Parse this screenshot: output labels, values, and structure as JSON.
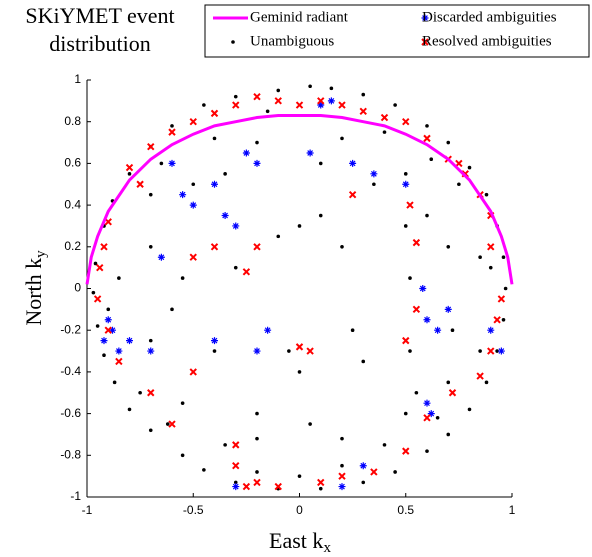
{
  "chart_data": {
    "type": "scatter",
    "title": [
      "SKiYMET event",
      "distribution"
    ],
    "xlabel": {
      "main": "East k",
      "sub": "x"
    },
    "ylabel": {
      "main": "North k",
      "sub": "y"
    },
    "xlim": [
      -1,
      1
    ],
    "ylim": [
      -1,
      1
    ],
    "xticks": [
      -1,
      -0.5,
      0,
      0.5,
      1
    ],
    "yticks": [
      -1,
      -0.8,
      -0.6,
      -0.4,
      -0.2,
      0,
      0.2,
      0.4,
      0.6,
      0.8,
      1
    ],
    "legend": "top-right",
    "series": [
      {
        "name": "Geminid radiant",
        "color": "#ff00ff",
        "marker": "line",
        "x": [
          -1,
          -0.98,
          -0.95,
          -0.9,
          -0.8,
          -0.7,
          -0.6,
          -0.5,
          -0.4,
          -0.3,
          -0.2,
          -0.1,
          0,
          0.1,
          0.2,
          0.3,
          0.4,
          0.5,
          0.6,
          0.7,
          0.8,
          0.9,
          0.95,
          0.98,
          1
        ],
        "values": [
          0.02,
          0.15,
          0.25,
          0.37,
          0.52,
          0.62,
          0.69,
          0.74,
          0.78,
          0.8,
          0.82,
          0.83,
          0.83,
          0.83,
          0.82,
          0.8,
          0.78,
          0.74,
          0.69,
          0.62,
          0.52,
          0.37,
          0.25,
          0.15,
          0.02
        ]
      },
      {
        "name": "Unambiguous",
        "color": "#000000",
        "marker": "dot",
        "x": [
          0.05,
          0.15,
          -0.1,
          0.3,
          -0.3,
          0.45,
          -0.45,
          0.6,
          -0.6,
          0.7,
          -0.7,
          0.8,
          -0.8,
          0.88,
          -0.88,
          0.93,
          -0.92,
          0.96,
          -0.96,
          0.97,
          -0.97,
          0.96,
          -0.95,
          0.93,
          -0.92,
          0.88,
          -0.87,
          0.8,
          -0.8,
          0.7,
          -0.7,
          0.6,
          -0.55,
          0.45,
          -0.45,
          0.3,
          -0.3,
          0.1,
          -0.1,
          0,
          0.5,
          -0.5,
          0.55,
          -0.55,
          0.7,
          -0.7,
          0.72,
          -0.7,
          0.2,
          -0.2,
          0.2,
          -0.2,
          0.52,
          0.52,
          0.5,
          0.5,
          0,
          0.1,
          -0.1,
          0.2,
          -0.3,
          0,
          -0.05,
          -0.4,
          0.3,
          -0.2,
          0.05,
          0.35,
          -0.35,
          0.1,
          -0.6,
          0.6,
          -0.55,
          0.25,
          -0.7,
          0.7,
          0.85,
          -0.85,
          0.85,
          -0.85,
          0.4,
          -0.4,
          0.4,
          -0.35,
          0.75,
          -0.75,
          0.1,
          -0.15,
          0.2,
          -0.2,
          0.9,
          -0.9,
          0.62,
          -0.65,
          0.65,
          -0.62
        ],
        "values": [
          0.97,
          0.96,
          0.95,
          0.93,
          0.92,
          0.88,
          0.88,
          0.78,
          0.78,
          0.7,
          0.68,
          0.58,
          0.55,
          0.45,
          0.42,
          0.3,
          0.3,
          0.15,
          0.12,
          0,
          -0.02,
          -0.15,
          -0.18,
          -0.3,
          -0.32,
          -0.45,
          -0.45,
          -0.58,
          -0.58,
          -0.7,
          -0.68,
          -0.78,
          -0.8,
          -0.88,
          -0.87,
          -0.93,
          -0.93,
          -0.96,
          -0.96,
          -0.9,
          0.55,
          0.5,
          -0.5,
          -0.55,
          0.2,
          0.2,
          -0.2,
          -0.25,
          0.72,
          0.7,
          -0.72,
          -0.72,
          0.05,
          -0.3,
          0.3,
          -0.6,
          0.3,
          0.35,
          0.25,
          0.2,
          0.1,
          -0.4,
          -0.3,
          -0.3,
          -0.35,
          -0.6,
          -0.65,
          0.5,
          0.55,
          0.6,
          -0.1,
          0.35,
          0.05,
          -0.2,
          0.45,
          -0.45,
          0.15,
          0.05,
          -0.3,
          -0.3,
          0.75,
          0.72,
          -0.75,
          -0.75,
          0.5,
          -0.5,
          0.88,
          0.85,
          -0.85,
          -0.88,
          0.1,
          -0.1,
          0.62,
          0.6,
          -0.62,
          -0.65
        ]
      },
      {
        "name": "Discarded ambiguities",
        "color": "#0000ff",
        "marker": "asterisk",
        "x": [
          -0.9,
          -0.92,
          -0.88,
          -0.85,
          -0.5,
          -0.55,
          -0.4,
          -0.2,
          -0.25,
          0.05,
          0.25,
          0.1,
          0.15,
          -0.6,
          -0.35,
          -0.3,
          0.7,
          0.65,
          0.6,
          0.58,
          0.9,
          0.95,
          0.6,
          0.62,
          -0.7,
          -0.8,
          -0.2,
          -0.15,
          -0.4,
          0.3,
          0.2,
          -0.65,
          -0.3,
          0.5,
          0.35
        ],
        "values": [
          -0.15,
          -0.25,
          -0.2,
          -0.3,
          0.4,
          0.45,
          0.5,
          0.6,
          0.65,
          0.65,
          0.6,
          0.88,
          0.9,
          0.6,
          0.35,
          0.3,
          -0.1,
          -0.2,
          -0.15,
          0,
          -0.2,
          -0.3,
          -0.55,
          -0.6,
          -0.3,
          -0.25,
          -0.3,
          -0.2,
          -0.25,
          -0.85,
          -0.95,
          0.15,
          -0.95,
          0.5,
          0.55
        ]
      },
      {
        "name": "Resolved ambiguities",
        "color": "#ff0000",
        "marker": "x",
        "x": [
          -0.8,
          -0.7,
          -0.6,
          -0.5,
          -0.4,
          -0.3,
          -0.2,
          -0.1,
          0,
          0.1,
          0.2,
          0.3,
          0.4,
          0.5,
          0.6,
          0.7,
          0.78,
          0.85,
          0.9,
          -0.92,
          -0.94,
          -0.9,
          -0.95,
          -0.9,
          -0.85,
          0.95,
          0.93,
          0.9,
          0.85,
          0.55,
          0.55,
          0.5,
          0.52,
          -0.25,
          -0.4,
          -0.5,
          0,
          0.05,
          -0.7,
          -0.6,
          -0.3,
          -0.2,
          -0.1,
          0.1,
          0.2,
          0.35,
          0.5,
          0.6,
          0.72,
          -0.5,
          -0.2,
          0.25,
          -0.75,
          0.75,
          -0.3,
          0.9,
          -0.25
        ],
        "values": [
          0.58,
          0.68,
          0.75,
          0.8,
          0.84,
          0.88,
          0.92,
          0.9,
          0.88,
          0.9,
          0.88,
          0.85,
          0.82,
          0.8,
          0.72,
          0.62,
          0.55,
          0.45,
          0.35,
          0.2,
          0.1,
          0.32,
          -0.05,
          -0.2,
          -0.35,
          -0.05,
          -0.15,
          -0.3,
          -0.42,
          0.22,
          -0.1,
          -0.25,
          0.4,
          0.08,
          0.2,
          0.15,
          -0.28,
          -0.3,
          -0.5,
          -0.65,
          -0.85,
          -0.93,
          -0.95,
          -0.93,
          -0.9,
          -0.88,
          -0.78,
          -0.62,
          -0.5,
          -0.4,
          0.2,
          0.45,
          0.5,
          0.6,
          -0.75,
          0.2,
          -0.95
        ]
      }
    ]
  }
}
